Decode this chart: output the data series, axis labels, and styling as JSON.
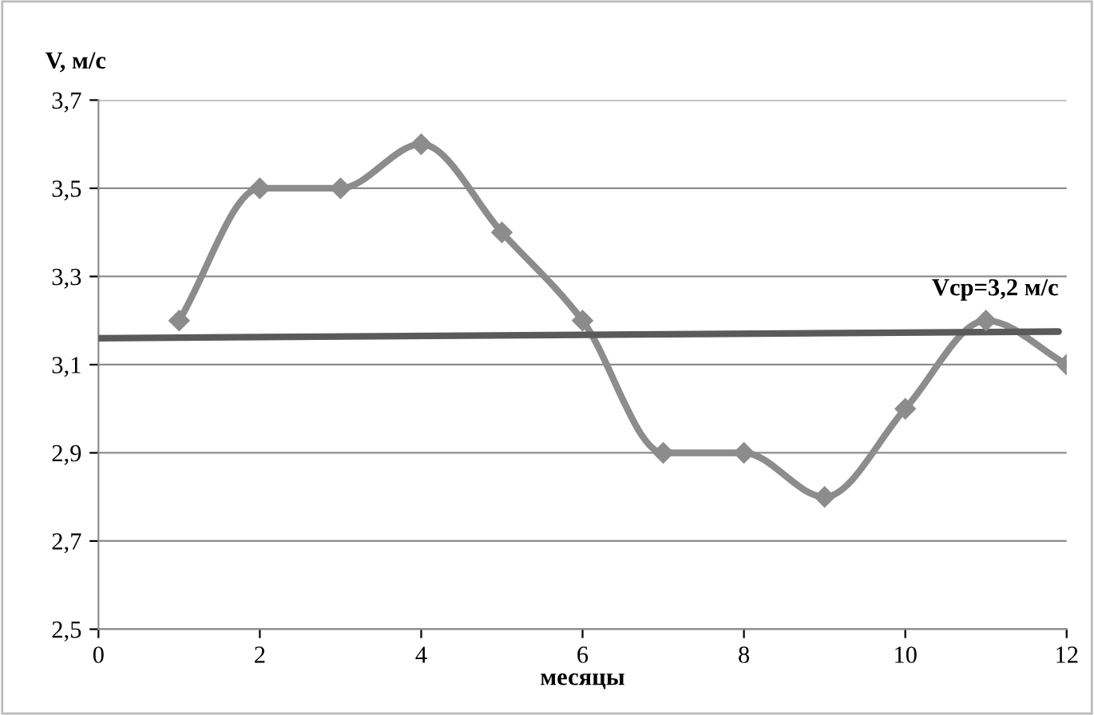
{
  "chart_data": {
    "type": "line",
    "xlabel": "месяцы",
    "ylabel": "V, м/с",
    "x": [
      1,
      2,
      3,
      4,
      5,
      6,
      7,
      8,
      9,
      10,
      11,
      12
    ],
    "series": [
      {
        "color": "#8c8c8c",
        "values": [
          3.2,
          3.5,
          3.5,
          3.6,
          3.4,
          3.2,
          2.9,
          2.9,
          2.8,
          3.0,
          3.2,
          3.1
        ],
        "marker": "diamond"
      },
      {
        "type": "line",
        "color": "#5a5a5a",
        "x": [
          0,
          11.9
        ],
        "values": [
          3.16,
          3.175
        ],
        "marker": "none"
      }
    ],
    "annotations": [
      {
        "text": "Vср=3,2 м/с",
        "x": 11.9,
        "y": 3.175
      }
    ],
    "xlim": [
      0,
      12
    ],
    "xticks": [
      0,
      2,
      4,
      6,
      8,
      10,
      12
    ],
    "ylim": [
      2.5,
      3.7
    ],
    "yticks": [
      {
        "value": 2.5,
        "label": "2,5"
      },
      {
        "value": 2.7,
        "label": "2,7"
      },
      {
        "value": 2.9,
        "label": "2,9"
      },
      {
        "value": 3.1,
        "label": "3,1"
      },
      {
        "value": 3.3,
        "label": "3,3"
      },
      {
        "value": 3.5,
        "label": "3,5"
      },
      {
        "value": 3.7,
        "label": "3,7"
      }
    ],
    "grid": "y",
    "legend": false
  }
}
